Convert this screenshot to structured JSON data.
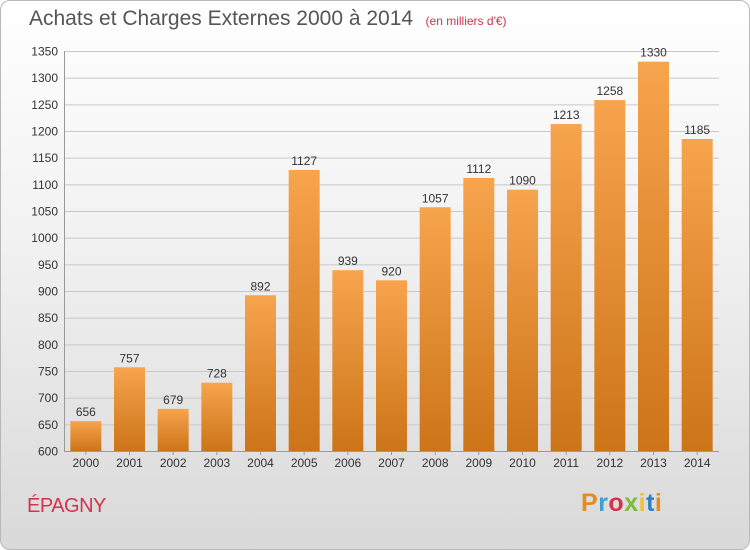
{
  "header": {
    "title": "Achats et Charges Externes 2000 à 2014",
    "subtitle": "(en milliers d'€)"
  },
  "footer": {
    "place": "ÉPAGNY",
    "logo_text": "Proxiti",
    "logo_colors": [
      "#e98a1e",
      "#3aa0d6",
      "#d2334e",
      "#7dbb3a",
      "#f2c12e",
      "#2e7fc1",
      "#e98a1e"
    ]
  },
  "chart_data": {
    "type": "bar",
    "title": "Achats et Charges Externes 2000 à 2014",
    "subtitle": "(en milliers d'€)",
    "categories": [
      "2000",
      "2001",
      "2002",
      "2003",
      "2004",
      "2005",
      "2006",
      "2007",
      "2008",
      "2009",
      "2010",
      "2011",
      "2012",
      "2013",
      "2014"
    ],
    "values": [
      656,
      757,
      679,
      728,
      892,
      1127,
      939,
      920,
      1057,
      1112,
      1090,
      1213,
      1258,
      1330,
      1185
    ],
    "ylim": [
      600,
      1350
    ],
    "yticks": [
      600,
      650,
      700,
      750,
      800,
      850,
      900,
      950,
      1000,
      1050,
      1100,
      1150,
      1200,
      1250,
      1300,
      1350
    ],
    "grid": true,
    "colors": {
      "bar_top": "#f7a44e",
      "bar_bottom": "#cc7418",
      "grid": "#c8c8c8",
      "text": "#333333"
    }
  }
}
